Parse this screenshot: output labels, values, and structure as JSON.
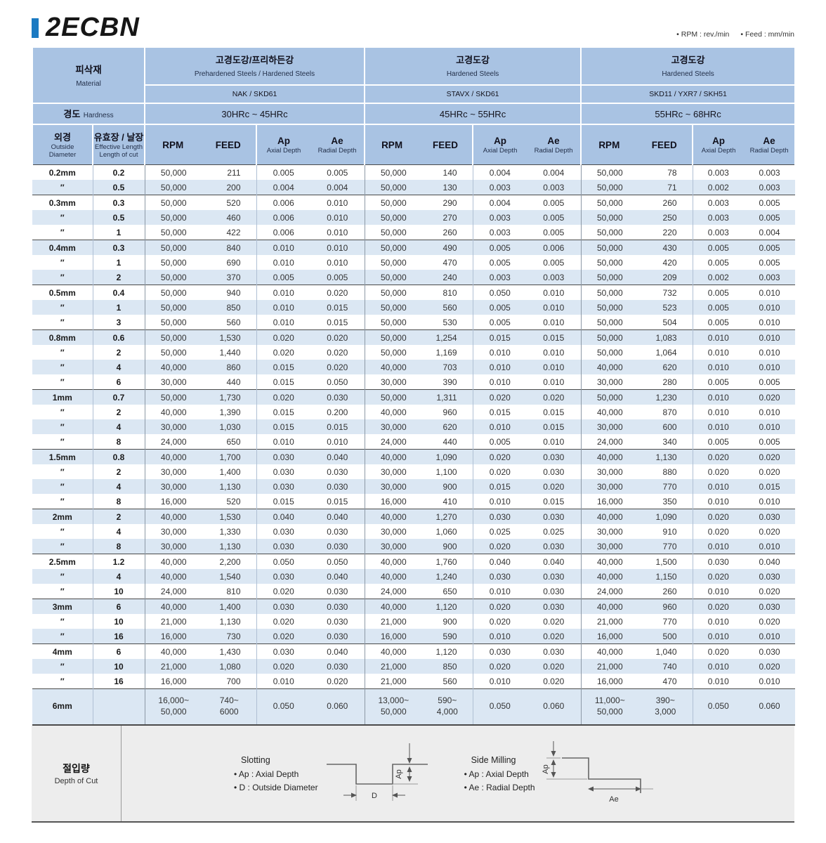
{
  "title": "2ECBN",
  "units": {
    "rpm": "• RPM : rev./min",
    "feed": "• Feed : mm/min"
  },
  "table": {
    "material": {
      "ko": "피삭재",
      "en": "Material"
    },
    "hardness_label": {
      "ko": "경도",
      "en": "Hardness"
    },
    "groups": [
      {
        "name_ko": "고경도강/프리하든강",
        "name_en": "Prehardened Steels / Hardened Steels",
        "grades": "NAK / SKD61",
        "hardness": "30HRc ~ 45HRc"
      },
      {
        "name_ko": "고경도강",
        "name_en": "Hardened Steels",
        "grades": "STAVX / SKD61",
        "hardness": "45HRc ~ 55HRc"
      },
      {
        "name_ko": "고경도강",
        "name_en": "Hardened Steels",
        "grades": "SKD11 / YXR7 / SKH51",
        "hardness": "55HRc ~ 68HRc"
      }
    ],
    "columns": {
      "dia_ko": "외경",
      "dia_en": "Outside\nDiameter",
      "len_ko": "유효장 / 날장",
      "len_en": "Effective Length\nLength of cut",
      "rpm": "RPM",
      "feed": "FEED",
      "ap": "Ap",
      "ap_sub": "Axial Depth",
      "ae": "Ae",
      "ae_sub": "Radial Depth"
    },
    "rows": [
      {
        "dia": "0.2mm",
        "len": "0.2",
        "first": true,
        "v": [
          "50,000",
          "211",
          "0.005",
          "0.005",
          "50,000",
          "140",
          "0.004",
          "0.004",
          "50,000",
          "78",
          "0.003",
          "0.003"
        ]
      },
      {
        "dia": "″",
        "len": "0.5",
        "v": [
          "50,000",
          "200",
          "0.004",
          "0.004",
          "50,000",
          "130",
          "0.003",
          "0.003",
          "50,000",
          "71",
          "0.002",
          "0.003"
        ]
      },
      {
        "dia": "0.3mm",
        "len": "0.3",
        "first": true,
        "v": [
          "50,000",
          "520",
          "0.006",
          "0.010",
          "50,000",
          "290",
          "0.004",
          "0.005",
          "50,000",
          "260",
          "0.003",
          "0.005"
        ]
      },
      {
        "dia": "″",
        "len": "0.5",
        "v": [
          "50,000",
          "460",
          "0.006",
          "0.010",
          "50,000",
          "270",
          "0.003",
          "0.005",
          "50,000",
          "250",
          "0.003",
          "0.005"
        ]
      },
      {
        "dia": "″",
        "len": "1",
        "v": [
          "50,000",
          "422",
          "0.006",
          "0.010",
          "50,000",
          "260",
          "0.003",
          "0.005",
          "50,000",
          "220",
          "0.003",
          "0.004"
        ]
      },
      {
        "dia": "0.4mm",
        "len": "0.3",
        "first": true,
        "v": [
          "50,000",
          "840",
          "0.010",
          "0.010",
          "50,000",
          "490",
          "0.005",
          "0.006",
          "50,000",
          "430",
          "0.005",
          "0.005"
        ]
      },
      {
        "dia": "″",
        "len": "1",
        "v": [
          "50,000",
          "690",
          "0.010",
          "0.010",
          "50,000",
          "470",
          "0.005",
          "0.005",
          "50,000",
          "420",
          "0.005",
          "0.005"
        ]
      },
      {
        "dia": "″",
        "len": "2",
        "v": [
          "50,000",
          "370",
          "0.005",
          "0.005",
          "50,000",
          "240",
          "0.003",
          "0.003",
          "50,000",
          "209",
          "0.002",
          "0.003"
        ]
      },
      {
        "dia": "0.5mm",
        "len": "0.4",
        "first": true,
        "v": [
          "50,000",
          "940",
          "0.010",
          "0.020",
          "50,000",
          "810",
          "0.050",
          "0.010",
          "50,000",
          "732",
          "0.005",
          "0.010"
        ]
      },
      {
        "dia": "″",
        "len": "1",
        "v": [
          "50,000",
          "850",
          "0.010",
          "0.015",
          "50,000",
          "560",
          "0.005",
          "0.010",
          "50,000",
          "523",
          "0.005",
          "0.010"
        ]
      },
      {
        "dia": "″",
        "len": "3",
        "v": [
          "50,000",
          "560",
          "0.010",
          "0.015",
          "50,000",
          "530",
          "0.005",
          "0.010",
          "50,000",
          "504",
          "0.005",
          "0.010"
        ]
      },
      {
        "dia": "0.8mm",
        "len": "0.6",
        "first": true,
        "v": [
          "50,000",
          "1,530",
          "0.020",
          "0.020",
          "50,000",
          "1,254",
          "0.015",
          "0.015",
          "50,000",
          "1,083",
          "0.010",
          "0.010"
        ]
      },
      {
        "dia": "″",
        "len": "2",
        "v": [
          "50,000",
          "1,440",
          "0.020",
          "0.020",
          "50,000",
          "1,169",
          "0.010",
          "0.010",
          "50,000",
          "1,064",
          "0.010",
          "0.010"
        ]
      },
      {
        "dia": "″",
        "len": "4",
        "v": [
          "40,000",
          "860",
          "0.015",
          "0.020",
          "40,000",
          "703",
          "0.010",
          "0.010",
          "40,000",
          "620",
          "0.010",
          "0.010"
        ]
      },
      {
        "dia": "″",
        "len": "6",
        "v": [
          "30,000",
          "440",
          "0.015",
          "0.050",
          "30,000",
          "390",
          "0.010",
          "0.010",
          "30,000",
          "280",
          "0.005",
          "0.005"
        ]
      },
      {
        "dia": "1mm",
        "len": "0.7",
        "first": true,
        "v": [
          "50,000",
          "1,730",
          "0.020",
          "0.030",
          "50,000",
          "1,311",
          "0.020",
          "0.020",
          "50,000",
          "1,230",
          "0.010",
          "0.020"
        ]
      },
      {
        "dia": "″",
        "len": "2",
        "v": [
          "40,000",
          "1,390",
          "0.015",
          "0.200",
          "40,000",
          "960",
          "0.015",
          "0.015",
          "40,000",
          "870",
          "0.010",
          "0.010"
        ]
      },
      {
        "dia": "″",
        "len": "4",
        "v": [
          "30,000",
          "1,030",
          "0.015",
          "0.015",
          "30,000",
          "620",
          "0.010",
          "0.015",
          "30,000",
          "600",
          "0.010",
          "0.010"
        ]
      },
      {
        "dia": "″",
        "len": "8",
        "v": [
          "24,000",
          "650",
          "0.010",
          "0.010",
          "24,000",
          "440",
          "0.005",
          "0.010",
          "24,000",
          "340",
          "0.005",
          "0.005"
        ]
      },
      {
        "dia": "1.5mm",
        "len": "0.8",
        "first": true,
        "v": [
          "40,000",
          "1,700",
          "0.030",
          "0.040",
          "40,000",
          "1,090",
          "0.020",
          "0.030",
          "40,000",
          "1,130",
          "0.020",
          "0.020"
        ]
      },
      {
        "dia": "″",
        "len": "2",
        "v": [
          "30,000",
          "1,400",
          "0.030",
          "0.030",
          "30,000",
          "1,100",
          "0.020",
          "0.030",
          "30,000",
          "880",
          "0.020",
          "0.020"
        ]
      },
      {
        "dia": "″",
        "len": "4",
        "v": [
          "30,000",
          "1,130",
          "0.030",
          "0.030",
          "30,000",
          "900",
          "0.015",
          "0.020",
          "30,000",
          "770",
          "0.010",
          "0.015"
        ]
      },
      {
        "dia": "″",
        "len": "8",
        "v": [
          "16,000",
          "520",
          "0.015",
          "0.015",
          "16,000",
          "410",
          "0.010",
          "0.015",
          "16,000",
          "350",
          "0.010",
          "0.010"
        ]
      },
      {
        "dia": "2mm",
        "len": "2",
        "first": true,
        "v": [
          "40,000",
          "1,530",
          "0.040",
          "0.040",
          "40,000",
          "1,270",
          "0.030",
          "0.030",
          "40,000",
          "1,090",
          "0.020",
          "0.030"
        ]
      },
      {
        "dia": "″",
        "len": "4",
        "v": [
          "30,000",
          "1,330",
          "0.030",
          "0.030",
          "30,000",
          "1,060",
          "0.025",
          "0.025",
          "30,000",
          "910",
          "0.020",
          "0.020"
        ]
      },
      {
        "dia": "″",
        "len": "8",
        "v": [
          "30,000",
          "1,130",
          "0.030",
          "0.030",
          "30,000",
          "900",
          "0.020",
          "0.030",
          "30,000",
          "770",
          "0.010",
          "0.010"
        ]
      },
      {
        "dia": "2.5mm",
        "len": "1.2",
        "first": true,
        "v": [
          "40,000",
          "2,200",
          "0.050",
          "0.050",
          "40,000",
          "1,760",
          "0.040",
          "0.040",
          "40,000",
          "1,500",
          "0.030",
          "0.040"
        ]
      },
      {
        "dia": "″",
        "len": "4",
        "v": [
          "40,000",
          "1,540",
          "0.030",
          "0.040",
          "40,000",
          "1,240",
          "0.030",
          "0.030",
          "40,000",
          "1,150",
          "0.020",
          "0.030"
        ]
      },
      {
        "dia": "″",
        "len": "10",
        "v": [
          "24,000",
          "810",
          "0.020",
          "0.030",
          "24,000",
          "650",
          "0.010",
          "0.030",
          "24,000",
          "260",
          "0.010",
          "0.020"
        ]
      },
      {
        "dia": "3mm",
        "len": "6",
        "first": true,
        "v": [
          "40,000",
          "1,400",
          "0.030",
          "0.030",
          "40,000",
          "1,120",
          "0.020",
          "0.030",
          "40,000",
          "960",
          "0.020",
          "0.030"
        ]
      },
      {
        "dia": "″",
        "len": "10",
        "v": [
          "21,000",
          "1,130",
          "0.020",
          "0.030",
          "21,000",
          "900",
          "0.020",
          "0.020",
          "21,000",
          "770",
          "0.010",
          "0.020"
        ]
      },
      {
        "dia": "″",
        "len": "16",
        "v": [
          "16,000",
          "730",
          "0.020",
          "0.030",
          "16,000",
          "590",
          "0.010",
          "0.020",
          "16,000",
          "500",
          "0.010",
          "0.010"
        ]
      },
      {
        "dia": "4mm",
        "len": "6",
        "first": true,
        "v": [
          "40,000",
          "1,430",
          "0.030",
          "0.040",
          "40,000",
          "1,120",
          "0.030",
          "0.030",
          "40,000",
          "1,040",
          "0.020",
          "0.030"
        ]
      },
      {
        "dia": "″",
        "len": "10",
        "v": [
          "21,000",
          "1,080",
          "0.020",
          "0.030",
          "21,000",
          "850",
          "0.020",
          "0.020",
          "21,000",
          "740",
          "0.010",
          "0.020"
        ]
      },
      {
        "dia": "″",
        "len": "16",
        "v": [
          "16,000",
          "700",
          "0.010",
          "0.020",
          "21,000",
          "560",
          "0.010",
          "0.020",
          "16,000",
          "470",
          "0.010",
          "0.010"
        ]
      },
      {
        "dia": "6mm",
        "len": "",
        "first": true,
        "tall": true,
        "v": [
          "16,000~\n50,000",
          "740~\n6000",
          "0.050",
          "0.060",
          "13,000~\n50,000",
          "590~\n4,000",
          "0.050",
          "0.060",
          "11,000~\n50,000",
          "390~\n3,000",
          "0.050",
          "0.060"
        ]
      }
    ]
  },
  "footer": {
    "label": {
      "ko": "절입량",
      "en": "Depth of Cut"
    },
    "slotting": {
      "title": "Slotting",
      "bullet1": "• Ap :  Axial Depth",
      "bullet2": "• D :  Outside Diameter",
      "dim_ap": "Ap",
      "dim_d": "D"
    },
    "side_milling": {
      "title": "Side Milling",
      "bullet1": "• Ap :  Axial Depth",
      "bullet2": "• Ae :  Radial Depth",
      "dim_ap": "Ap",
      "dim_ae": "Ae"
    }
  }
}
